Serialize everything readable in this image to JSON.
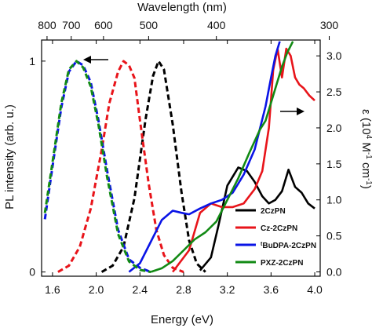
{
  "chart_data": {
    "type": "line",
    "xlabel": "Energy (eV)",
    "ylabel_left": "PL intensity (arb. u.)",
    "ylabel_right_prefix": "ε (10",
    "ylabel_right_sup1": "4",
    "ylabel_right_mid": " M",
    "ylabel_right_sup2": "-1",
    "ylabel_right_mid2": " cm",
    "ylabel_right_sup3": "-1",
    "ylabel_right_suffix": ")",
    "xlabel_top": "Wavelength (nm)",
    "xlim": [
      1.5,
      4.05
    ],
    "ylim_left": [
      -0.02,
      1.1
    ],
    "ylim_right": [
      -0.06,
      3.22
    ],
    "x_ticks": [
      1.6,
      2.0,
      2.4,
      2.8,
      3.2,
      3.6,
      4.0
    ],
    "x_tick_labels": [
      "1.6",
      "2.0",
      "2.4",
      "2.8",
      "3.2",
      "3.6",
      "4.0"
    ],
    "y_left_ticks": [
      0,
      1
    ],
    "y_left_tick_labels": [
      "0",
      "1"
    ],
    "y_right_ticks": [
      0.0,
      0.5,
      1.0,
      1.5,
      2.0,
      2.5,
      3.0
    ],
    "y_right_tick_labels": [
      "0.0",
      "0.5",
      "1.0",
      "1.5",
      "2.0",
      "2.5",
      "3.0"
    ],
    "top_ticks": [
      800,
      700,
      600,
      500,
      400,
      300
    ],
    "top_tick_labels": [
      "800",
      "700",
      "600",
      "500",
      "400",
      "300"
    ],
    "legend_position": "bottom-right",
    "series": [
      {
        "name": "2CzPN",
        "color": "#000000",
        "pl_x": [
          2.05,
          2.15,
          2.25,
          2.35,
          2.45,
          2.52,
          2.57,
          2.62,
          2.7,
          2.78,
          2.85,
          2.92,
          3.0
        ],
        "pl_y": [
          0.0,
          0.03,
          0.12,
          0.35,
          0.72,
          0.93,
          1.0,
          0.96,
          0.7,
          0.38,
          0.15,
          0.04,
          0.0
        ],
        "abs_x": [
          2.95,
          3.05,
          3.12,
          3.2,
          3.3,
          3.38,
          3.45,
          3.52,
          3.58,
          3.64,
          3.7,
          3.76,
          3.82,
          3.88,
          3.94,
          4.0
        ],
        "abs_y": [
          0.02,
          0.2,
          0.65,
          1.2,
          1.45,
          1.4,
          1.25,
          1.05,
          0.95,
          1.0,
          1.12,
          1.42,
          1.18,
          1.1,
          0.95,
          0.88
        ]
      },
      {
        "name": "Cz-2CzPN",
        "color": "#e8141a",
        "pl_x": [
          1.65,
          1.75,
          1.85,
          1.95,
          2.05,
          2.12,
          2.2,
          2.25,
          2.3,
          2.35,
          2.4,
          2.48,
          2.55,
          2.62,
          2.7,
          2.8
        ],
        "pl_y": [
          0.0,
          0.03,
          0.12,
          0.3,
          0.58,
          0.8,
          0.95,
          1.0,
          0.98,
          0.92,
          0.72,
          0.42,
          0.2,
          0.08,
          0.02,
          0.0
        ],
        "abs_x": [
          2.7,
          2.85,
          2.95,
          3.05,
          3.15,
          3.25,
          3.35,
          3.45,
          3.52,
          3.58,
          3.62,
          3.66,
          3.7,
          3.74,
          3.78,
          3.82,
          3.86,
          3.9,
          3.95,
          4.0
        ],
        "abs_y": [
          0.0,
          0.3,
          0.82,
          0.95,
          0.9,
          0.9,
          0.95,
          1.15,
          1.4,
          2.0,
          2.8,
          3.1,
          2.7,
          3.1,
          3.0,
          2.7,
          2.6,
          2.55,
          2.45,
          2.38
        ]
      },
      {
        "name": "tBuDPA-2CzPN",
        "name_sup": "t",
        "name_rest": "BuDPA-2CzPN",
        "color": "#0a14e6",
        "pl_x": [
          1.53,
          1.6,
          1.68,
          1.75,
          1.82,
          1.88,
          1.95,
          2.02,
          2.1,
          2.2,
          2.3,
          2.4,
          2.5
        ],
        "pl_y": [
          0.25,
          0.5,
          0.78,
          0.95,
          1.0,
          0.98,
          0.9,
          0.72,
          0.48,
          0.2,
          0.06,
          0.02,
          0.0
        ],
        "abs_x": [
          2.3,
          2.4,
          2.5,
          2.6,
          2.7,
          2.78,
          2.85,
          2.95,
          3.05,
          3.15,
          3.25,
          3.35,
          3.45,
          3.55,
          3.6,
          3.64,
          3.68
        ],
        "abs_y": [
          0.0,
          0.12,
          0.42,
          0.72,
          0.85,
          0.82,
          0.8,
          0.88,
          0.95,
          1.0,
          1.1,
          1.35,
          1.7,
          2.3,
          2.7,
          3.0,
          3.2
        ]
      },
      {
        "name": "PXZ-2CzPN",
        "color": "#128a14",
        "pl_x": [
          1.53,
          1.6,
          1.68,
          1.75,
          1.82,
          1.88,
          1.95,
          2.02,
          2.1,
          2.2,
          2.3,
          2.4,
          2.5
        ],
        "pl_y": [
          0.28,
          0.52,
          0.8,
          0.96,
          1.0,
          0.97,
          0.88,
          0.7,
          0.45,
          0.18,
          0.05,
          0.01,
          0.0
        ],
        "abs_x": [
          2.5,
          2.6,
          2.7,
          2.8,
          2.9,
          3.0,
          3.1,
          3.2,
          3.3,
          3.4,
          3.5,
          3.55,
          3.6,
          3.65,
          3.7,
          3.75,
          3.8
        ],
        "abs_y": [
          0.0,
          0.05,
          0.15,
          0.3,
          0.45,
          0.55,
          0.7,
          1.0,
          1.3,
          1.65,
          1.98,
          2.1,
          2.35,
          2.6,
          2.85,
          3.05,
          3.2
        ]
      }
    ]
  }
}
